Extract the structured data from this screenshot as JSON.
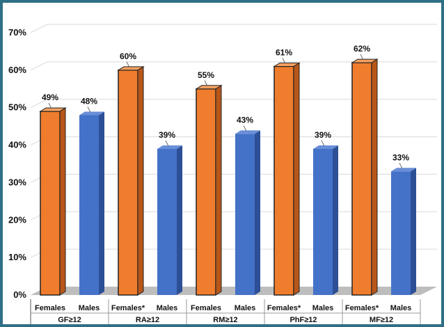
{
  "chart_data": {
    "type": "bar",
    "style": "3d-clustered-column",
    "groups": [
      {
        "label": "GF≥12",
        "bars": [
          {
            "category": "Females",
            "value": 49,
            "label": "49%",
            "series": "female"
          },
          {
            "category": "Males",
            "value": 48,
            "label": "48%",
            "series": "male"
          }
        ]
      },
      {
        "label": "RA≥12",
        "bars": [
          {
            "category": "Females*",
            "value": 60,
            "label": "60%",
            "series": "female"
          },
          {
            "category": "Males",
            "value": 39,
            "label": "39%",
            "series": "male"
          }
        ]
      },
      {
        "label": "RM≥12",
        "bars": [
          {
            "category": "Females",
            "value": 55,
            "label": "55%",
            "series": "female"
          },
          {
            "category": "Males",
            "value": 43,
            "label": "43%",
            "series": "male"
          }
        ]
      },
      {
        "label": "PhF≥12",
        "bars": [
          {
            "category": "Females*",
            "value": 61,
            "label": "61%",
            "series": "female"
          },
          {
            "category": "Males",
            "value": 39,
            "label": "39%",
            "series": "male"
          }
        ]
      },
      {
        "label": "MF≥12",
        "bars": [
          {
            "category": "Females*",
            "value": 62,
            "label": "62%",
            "series": "female"
          },
          {
            "category": "Males",
            "value": 33,
            "label": "33%",
            "series": "male"
          }
        ]
      }
    ],
    "y_ticks": [
      "0%",
      "10%",
      "20%",
      "30%",
      "40%",
      "50%",
      "60%",
      "70%"
    ],
    "ylim": [
      0,
      70
    ],
    "grid": true,
    "legend": "none",
    "colors": {
      "female": "#ef7d2d",
      "female_side": "#b8561a",
      "female_top": "#f5a061",
      "male": "#4472c8",
      "male_side": "#2d4f96",
      "male_top": "#6a8fd8",
      "grid": "#d9d9d9",
      "floor": "#bdbdbd"
    }
  }
}
